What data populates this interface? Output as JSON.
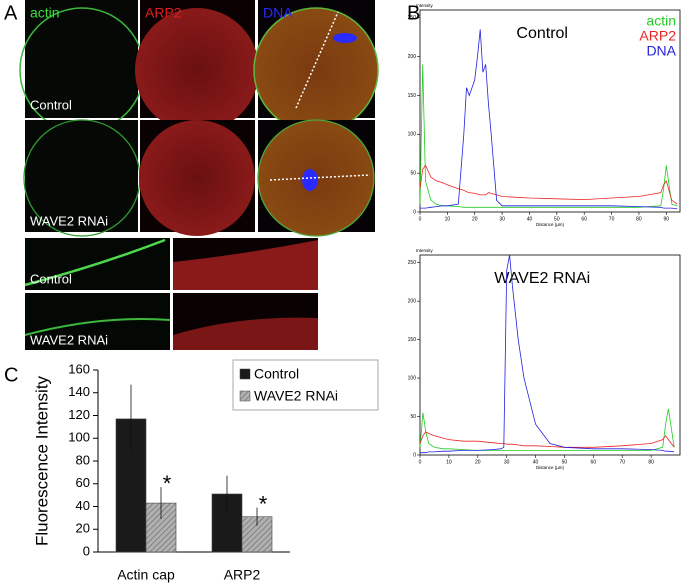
{
  "panel_labels": [
    "A",
    "B",
    "C"
  ],
  "panel_a": {
    "channels": [
      "actin",
      "ARP2",
      "DNA"
    ],
    "conditions": [
      "Control",
      "WAVE2 RNAi"
    ],
    "zoom_conditions": [
      "Control",
      "WAVE2 RNAi"
    ]
  },
  "chart_data": [
    {
      "type": "line",
      "title": "Control",
      "xlabel": "Distance (µm)",
      "ylabel": "Intensity",
      "legend": true,
      "x": [
        0,
        1,
        2,
        4,
        6,
        8,
        10,
        14,
        16,
        17,
        18,
        20,
        21,
        22,
        23,
        24,
        25,
        26,
        28,
        30,
        40,
        50,
        60,
        70,
        80,
        88,
        89,
        90,
        92,
        94
      ],
      "series": [
        {
          "name": "actin",
          "color": "#22cc22",
          "values": [
            10,
            190,
            40,
            15,
            10,
            8,
            8,
            7,
            6,
            6,
            6,
            6,
            6,
            6,
            6,
            6,
            6,
            6,
            6,
            6,
            6,
            6,
            6,
            6,
            6,
            8,
            30,
            60,
            10,
            8
          ]
        },
        {
          "name": "ARP2",
          "color": "#ee2222",
          "values": [
            30,
            55,
            60,
            45,
            40,
            38,
            35,
            30,
            28,
            26,
            25,
            24,
            23,
            22,
            22,
            22,
            25,
            24,
            22,
            20,
            18,
            17,
            16,
            18,
            20,
            25,
            35,
            40,
            15,
            10
          ]
        },
        {
          "name": "DNA",
          "color": "#2222dd",
          "values": [
            5,
            5,
            5,
            6,
            7,
            8,
            8,
            10,
            100,
            160,
            150,
            170,
            200,
            235,
            180,
            190,
            140,
            100,
            15,
            8,
            8,
            8,
            8,
            8,
            7,
            6,
            5,
            5,
            5,
            4
          ]
        }
      ],
      "xlim": [
        0,
        95
      ],
      "ylim": [
        0,
        260
      ],
      "xticks": [
        0,
        10,
        20,
        30,
        40,
        50,
        60,
        70,
        80,
        90
      ],
      "yticks": [
        0,
        50,
        100,
        150,
        200,
        250
      ]
    },
    {
      "type": "line",
      "title": "WAVE2 RNAi",
      "xlabel": "Distance (µm)",
      "ylabel": "Intensity",
      "legend": false,
      "x": [
        0,
        1,
        2,
        3,
        5,
        8,
        10,
        15,
        20,
        25,
        28,
        29,
        30,
        31,
        32,
        34,
        36,
        38,
        40,
        45,
        50,
        60,
        70,
        80,
        84,
        85,
        86,
        88
      ],
      "series": [
        {
          "name": "actin",
          "color": "#22cc22",
          "values": [
            10,
            55,
            30,
            15,
            10,
            8,
            8,
            7,
            6,
            6,
            6,
            6,
            6,
            6,
            6,
            6,
            6,
            6,
            6,
            6,
            6,
            6,
            6,
            6,
            10,
            40,
            60,
            10
          ]
        },
        {
          "name": "ARP2",
          "color": "#ee2222",
          "values": [
            15,
            25,
            30,
            28,
            25,
            22,
            20,
            18,
            18,
            16,
            15,
            15,
            14,
            14,
            14,
            13,
            12,
            12,
            12,
            11,
            10,
            10,
            12,
            15,
            20,
            25,
            20,
            10
          ]
        },
        {
          "name": "DNA",
          "color": "#2222dd",
          "values": [
            3,
            3,
            3,
            4,
            4,
            5,
            5,
            6,
            6,
            7,
            8,
            10,
            240,
            260,
            220,
            150,
            100,
            70,
            40,
            15,
            10,
            8,
            8,
            7,
            6,
            5,
            5,
            4
          ]
        }
      ],
      "xlim": [
        0,
        90
      ],
      "ylim": [
        0,
        260
      ],
      "xticks": [
        0,
        10,
        20,
        30,
        40,
        50,
        60,
        70,
        80
      ],
      "yticks": [
        0,
        50,
        100,
        150,
        200,
        250
      ]
    },
    {
      "type": "bar",
      "ylabel": "Fluorescence Intensity",
      "categories": [
        "Actin cap",
        "ARP2"
      ],
      "series": [
        {
          "name": "Control",
          "color": "#1a1a1a",
          "hatch": false,
          "values": [
            117,
            51
          ],
          "errors": [
            30,
            16
          ]
        },
        {
          "name": "WAVE2 RNAi",
          "color": "#a0a0a0",
          "hatch": true,
          "values": [
            43,
            31
          ],
          "errors": [
            14,
            8
          ]
        }
      ],
      "annotations": [
        "*",
        "*"
      ],
      "ylim": [
        0,
        160
      ],
      "yticks": [
        0,
        20,
        40,
        60,
        80,
        100,
        120,
        140,
        160
      ],
      "legend_position": "upper right"
    }
  ]
}
